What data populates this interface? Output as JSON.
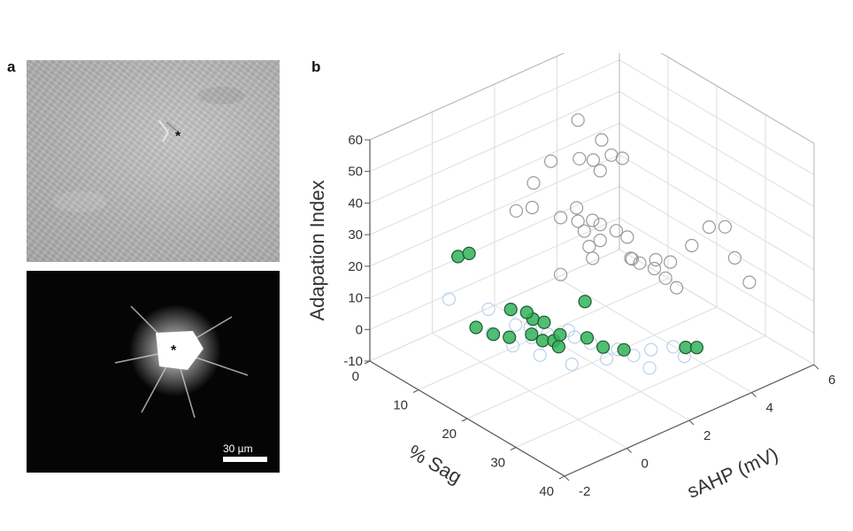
{
  "panels": {
    "a": {
      "letter": "a",
      "top_marker": "*",
      "bottom_marker": "*",
      "scale_bar_label": "30 µm"
    },
    "b": {
      "letter": "b"
    }
  },
  "chart_data": {
    "type": "scatter",
    "projection": "3d",
    "xlabel": "% Sag",
    "ylabel": "sAHP (mV)",
    "zlabel": "Adapation Index",
    "xlim": [
      0,
      40
    ],
    "ylim": [
      -2,
      6
    ],
    "zlim": [
      -10,
      60
    ],
    "xticks": [
      0,
      10,
      20,
      30,
      40
    ],
    "yticks": [
      -2,
      0,
      2,
      4,
      6
    ],
    "zticks": [
      -10,
      0,
      10,
      20,
      30,
      40,
      50,
      60
    ],
    "grid": true,
    "series": [
      {
        "color": "#9a9a9a",
        "filled": false,
        "points": [
          [
            12,
            2.8,
            56
          ],
          [
            9,
            2.4,
            42
          ],
          [
            8,
            2.0,
            36
          ],
          [
            14,
            3.2,
            40
          ],
          [
            15,
            3.4,
            45
          ],
          [
            11,
            3.0,
            42
          ],
          [
            13,
            3.4,
            48
          ],
          [
            16,
            3.6,
            44
          ],
          [
            10,
            3.6,
            38
          ],
          [
            7,
            1.6,
            28
          ],
          [
            9,
            1.8,
            30
          ],
          [
            13,
            2.6,
            30
          ],
          [
            15,
            2.8,
            27
          ],
          [
            11,
            2.4,
            26
          ],
          [
            12,
            2.8,
            24
          ],
          [
            14,
            3.2,
            23
          ],
          [
            16,
            3.4,
            22
          ],
          [
            12,
            3.0,
            20
          ],
          [
            14,
            3.2,
            18
          ],
          [
            17,
            3.6,
            20
          ],
          [
            15,
            2.8,
            15
          ],
          [
            19,
            3.4,
            16
          ],
          [
            18,
            3.6,
            14
          ],
          [
            13,
            3.0,
            16
          ],
          [
            17,
            4.0,
            10
          ],
          [
            20,
            4.0,
            11
          ],
          [
            21,
            4.2,
            8
          ],
          [
            11,
            2.4,
            8
          ],
          [
            22,
            4.4,
            5
          ],
          [
            20,
            5.2,
            13
          ],
          [
            21,
            5.6,
            18
          ],
          [
            23,
            5.8,
            19
          ],
          [
            25,
            5.8,
            11
          ],
          [
            28,
            5.8,
            6
          ],
          [
            22,
            4.2,
            14
          ],
          [
            19,
            4.2,
            12
          ]
        ]
      },
      {
        "color": "#b9d2ee",
        "filled": false,
        "points": [
          [
            6,
            -0.4,
            8
          ],
          [
            9,
            0.4,
            4
          ],
          [
            12,
            0.8,
            0
          ],
          [
            14,
            1.0,
            -3
          ],
          [
            16,
            1.2,
            -1
          ],
          [
            19,
            1.6,
            -1
          ],
          [
            21,
            1.8,
            -2
          ],
          [
            24,
            2.2,
            -3
          ],
          [
            26,
            2.4,
            -4
          ],
          [
            23,
            2.0,
            -6
          ],
          [
            21,
            1.2,
            -6
          ],
          [
            17,
            0.8,
            -5
          ],
          [
            14,
            0.4,
            -3
          ],
          [
            11,
            0.2,
            -1
          ],
          [
            27,
            2.8,
            -3
          ],
          [
            29,
            3.2,
            -2
          ],
          [
            30,
            3.4,
            -5
          ],
          [
            28,
            2.6,
            -7
          ],
          [
            19,
            1.4,
            2
          ],
          [
            15,
            0.8,
            2
          ]
        ]
      },
      {
        "color": "#33b35a",
        "filled": true,
        "points": [
          [
            4,
            0.2,
            17
          ],
          [
            5,
            0.4,
            18
          ],
          [
            9,
            0.0,
            0
          ],
          [
            10,
            0.4,
            -3
          ],
          [
            12,
            0.6,
            -3
          ],
          [
            13,
            1.2,
            1
          ],
          [
            14,
            1.0,
            -2
          ],
          [
            15,
            1.2,
            -4
          ],
          [
            16,
            1.4,
            -4
          ],
          [
            17,
            1.4,
            -5
          ],
          [
            16,
            1.6,
            -3
          ],
          [
            14,
            1.4,
            0
          ],
          [
            19,
            2.0,
            -3
          ],
          [
            21,
            2.2,
            -5
          ],
          [
            24,
            2.4,
            -4
          ],
          [
            29,
            3.6,
            -4
          ],
          [
            30,
            3.8,
            -4
          ],
          [
            11,
            0.8,
            4
          ],
          [
            13,
            1.0,
            4
          ],
          [
            16,
            2.4,
            4
          ]
        ]
      }
    ]
  }
}
